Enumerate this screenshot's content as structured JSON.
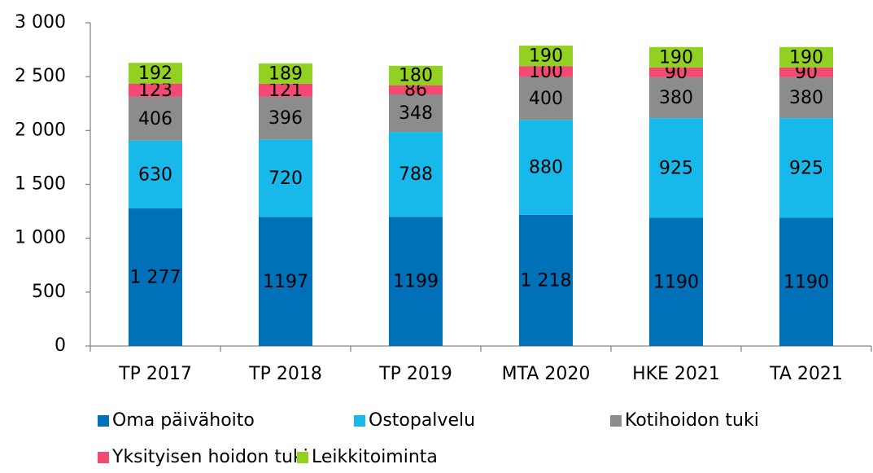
{
  "chart_data": {
    "type": "stacked_bar",
    "categories": [
      "TP 2017",
      "TP 2018",
      "TP 2019",
      "MTA 2020",
      "HKE 2021",
      "TA 2021"
    ],
    "series": [
      {
        "name": "Oma päivähoito",
        "color": "#0070b8",
        "values": [
          1277,
          1197,
          1199,
          1218,
          1190,
          1190
        ],
        "value_labels": [
          "1 277",
          "1197",
          "1199",
          "1 218",
          "1190",
          "1190"
        ]
      },
      {
        "name": "Ostopalvelu",
        "color": "#17b9ea",
        "values": [
          630,
          720,
          788,
          880,
          925,
          925
        ]
      },
      {
        "name": "Kotihoidon tuki",
        "color": "#8c8c8c",
        "values": [
          406,
          396,
          348,
          400,
          380,
          380
        ]
      },
      {
        "name": "Yksityisen hoidon tuki",
        "color": "#f24a72",
        "values": [
          123,
          121,
          86,
          100,
          90,
          90
        ]
      },
      {
        "name": "Leikkitoiminta",
        "color": "#92d022",
        "values": [
          192,
          189,
          180,
          190,
          190,
          190
        ]
      }
    ],
    "ylim": [
      0,
      3000
    ],
    "yticks": [
      0,
      500,
      {
        "value": 1000,
        "label": "1 000"
      },
      {
        "value": 1500,
        "label": "1 500"
      },
      {
        "value": 2000,
        "label": "2 000"
      },
      {
        "value": 2500,
        "label": "2 500"
      },
      {
        "value": 3000,
        "label": "3 000"
      }
    ],
    "grid": false,
    "legend": "bottom"
  }
}
